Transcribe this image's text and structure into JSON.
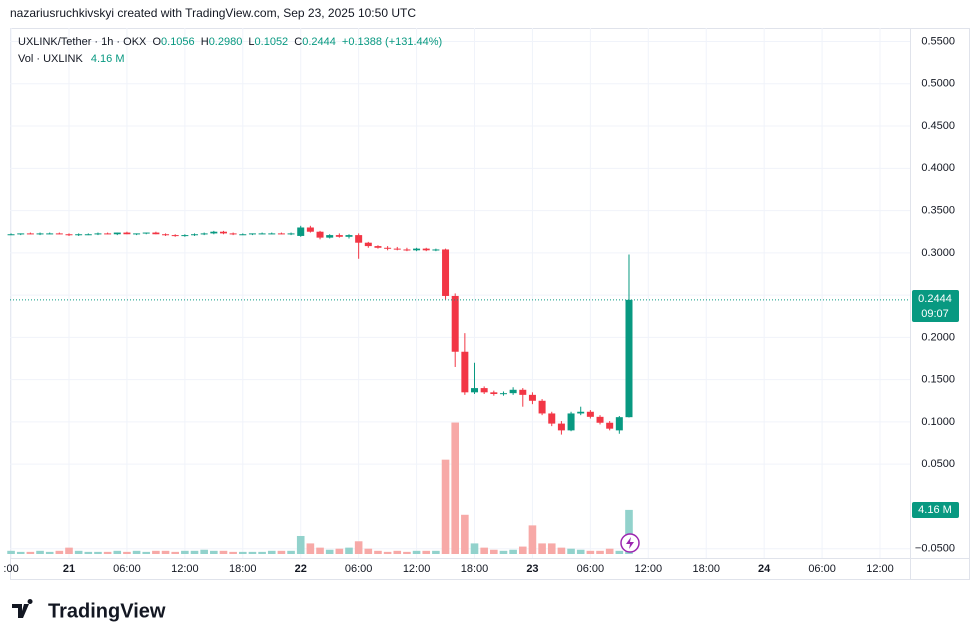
{
  "header": {
    "title": "nazariusruchkivskyi created with TradingView.com, Sep 23, 2025 10:50 UTC"
  },
  "legend": {
    "symbol": "UXLINK/Tether · 1h · OKX",
    "o_label": "O",
    "o": "0.1056",
    "h_label": "H",
    "h": "0.2980",
    "l_label": "L",
    "l": "0.1052",
    "c_label": "C",
    "c": "0.2444",
    "change": "+0.1388 (+131.44%)",
    "vol_label": "Vol · UXLINK",
    "vol": "4.16 M"
  },
  "price_badge": {
    "price": "0.2444",
    "countdown": "09:07"
  },
  "brand": "TradingView",
  "chart_data": {
    "type": "candlestick",
    "categories": [
      ":00",
      null,
      null,
      null,
      null,
      null,
      "21",
      null,
      null,
      null,
      null,
      null,
      "06:00",
      null,
      null,
      null,
      null,
      null,
      "12:00",
      null,
      null,
      null,
      null,
      null,
      "18:00",
      null,
      null,
      null,
      null,
      null,
      "22",
      null,
      null,
      null,
      null,
      null,
      "06:00",
      null,
      null,
      null,
      null,
      null,
      "12:00",
      null,
      null,
      null,
      null,
      null,
      "18:00",
      null,
      null,
      null,
      null,
      null,
      "23",
      null,
      null,
      null,
      null,
      null,
      "06:00",
      null,
      null,
      null,
      null,
      null,
      "12:00",
      null,
      null,
      null,
      null,
      null,
      "18:00",
      null,
      null,
      null,
      null,
      null,
      "24",
      null,
      null,
      null,
      null,
      null,
      "06:00",
      null,
      null,
      null,
      null,
      null,
      "12:00"
    ],
    "open": [
      0.322,
      0.322,
      0.323,
      0.322,
      0.323,
      0.323,
      0.322,
      0.321,
      0.322,
      0.322,
      0.323,
      0.322,
      0.324,
      0.322,
      0.323,
      0.324,
      0.322,
      0.321,
      0.32,
      0.321,
      0.322,
      0.323,
      0.325,
      0.323,
      0.322,
      0.322,
      0.323,
      0.323,
      0.323,
      0.322,
      0.32,
      0.33,
      0.325,
      0.318,
      0.321,
      0.319,
      0.321,
      0.312,
      0.308,
      0.306,
      0.305,
      0.304,
      0.303,
      0.305,
      0.303,
      0.304,
      0.249,
      0.183,
      0.135,
      0.14,
      0.135,
      0.133,
      0.134,
      0.138,
      0.132,
      0.125,
      0.11,
      0.098,
      0.09,
      0.11,
      0.112,
      0.106,
      0.099,
      0.09,
      0.1056,
      null,
      null,
      null,
      null,
      null,
      null,
      null,
      null,
      null,
      null,
      null,
      null,
      null,
      null,
      null,
      null,
      null,
      null,
      null,
      null,
      null,
      null,
      null,
      null,
      null,
      null
    ],
    "high": [
      0.323,
      0.323,
      0.324,
      0.324,
      0.324,
      0.324,
      0.323,
      0.323,
      0.323,
      0.324,
      0.324,
      0.324,
      0.325,
      0.323,
      0.324,
      0.325,
      0.323,
      0.322,
      0.322,
      0.323,
      0.324,
      0.326,
      0.326,
      0.324,
      0.323,
      0.323,
      0.324,
      0.324,
      0.324,
      0.324,
      0.332,
      0.332,
      0.326,
      0.322,
      0.323,
      0.322,
      0.323,
      0.313,
      0.309,
      0.308,
      0.307,
      0.306,
      0.306,
      0.306,
      0.305,
      0.305,
      0.252,
      0.205,
      0.17,
      0.142,
      0.137,
      0.136,
      0.141,
      0.14,
      0.135,
      0.127,
      0.112,
      0.101,
      0.112,
      0.118,
      0.114,
      0.108,
      0.101,
      0.107,
      0.298,
      null,
      null,
      null,
      null,
      null,
      null,
      null,
      null,
      null,
      null,
      null,
      null,
      null,
      null,
      null,
      null,
      null,
      null,
      null,
      null,
      null,
      null,
      null,
      null,
      null,
      null
    ],
    "low": [
      0.321,
      0.321,
      0.322,
      0.321,
      0.322,
      0.322,
      0.32,
      0.32,
      0.321,
      0.321,
      0.322,
      0.321,
      0.322,
      0.321,
      0.322,
      0.322,
      0.32,
      0.319,
      0.319,
      0.32,
      0.321,
      0.322,
      0.322,
      0.321,
      0.321,
      0.321,
      0.322,
      0.322,
      0.322,
      0.321,
      0.319,
      0.324,
      0.316,
      0.317,
      0.318,
      0.317,
      0.293,
      0.306,
      0.305,
      0.303,
      0.303,
      0.302,
      0.302,
      0.302,
      0.302,
      0.245,
      0.165,
      0.132,
      0.133,
      0.133,
      0.131,
      0.131,
      0.132,
      0.118,
      0.121,
      0.108,
      0.095,
      0.085,
      0.089,
      0.108,
      0.104,
      0.097,
      0.09,
      0.086,
      0.1052,
      null,
      null,
      null,
      null,
      null,
      null,
      null,
      null,
      null,
      null,
      null,
      null,
      null,
      null,
      null,
      null,
      null,
      null,
      null,
      null,
      null,
      null,
      null,
      null,
      null,
      null
    ],
    "close": [
      0.322,
      0.323,
      0.322,
      0.323,
      0.323,
      0.322,
      0.321,
      0.322,
      0.322,
      0.323,
      0.322,
      0.324,
      0.322,
      0.323,
      0.324,
      0.322,
      0.321,
      0.32,
      0.321,
      0.322,
      0.323,
      0.325,
      0.323,
      0.322,
      0.322,
      0.323,
      0.323,
      0.323,
      0.322,
      0.323,
      0.33,
      0.325,
      0.318,
      0.321,
      0.319,
      0.321,
      0.312,
      0.308,
      0.306,
      0.305,
      0.304,
      0.303,
      0.305,
      0.303,
      0.304,
      0.249,
      0.183,
      0.135,
      0.14,
      0.135,
      0.133,
      0.134,
      0.138,
      0.132,
      0.125,
      0.11,
      0.098,
      0.09,
      0.11,
      0.112,
      0.106,
      0.099,
      0.092,
      0.1056,
      0.2444,
      null,
      null,
      null,
      null,
      null,
      null,
      null,
      null,
      null,
      null,
      null,
      null,
      null,
      null,
      null,
      null,
      null,
      null,
      null,
      null,
      null,
      null,
      null,
      null,
      null,
      null
    ],
    "volume": [
      0.3,
      0.2,
      0.2,
      0.3,
      0.2,
      0.3,
      0.6,
      0.3,
      0.2,
      0.2,
      0.2,
      0.3,
      0.2,
      0.3,
      0.2,
      0.3,
      0.3,
      0.2,
      0.3,
      0.3,
      0.4,
      0.3,
      0.3,
      0.2,
      0.2,
      0.2,
      0.2,
      0.3,
      0.3,
      0.3,
      1.7,
      1.0,
      0.6,
      0.4,
      0.5,
      0.6,
      1.2,
      0.5,
      0.3,
      0.2,
      0.3,
      0.2,
      0.3,
      0.3,
      0.3,
      8.9,
      12.4,
      3.7,
      1.0,
      0.6,
      0.4,
      0.3,
      0.4,
      0.7,
      2.7,
      1.0,
      1.0,
      0.6,
      0.5,
      0.4,
      0.3,
      0.3,
      0.5,
      0.3,
      4.16,
      null,
      null,
      null,
      null,
      null,
      null,
      null,
      null,
      null,
      null,
      null,
      null,
      null,
      null,
      null,
      null,
      null,
      null,
      null,
      null,
      null,
      null,
      null,
      null,
      null,
      null
    ],
    "up_color": "#089981",
    "down_color": "#f23645",
    "up_volume_color": "#92d2cc",
    "down_volume_color": "#f7a9a7",
    "ylim": [
      -0.061,
      0.566
    ],
    "yticks": [
      {
        "value": -0.05,
        "label": "−0.0500"
      },
      {
        "value": 0.05,
        "label": "0.0500"
      },
      {
        "value": 0.1,
        "label": "0.1000"
      },
      {
        "value": 0.15,
        "label": "0.1500"
      },
      {
        "value": 0.2,
        "label": "0.2000"
      },
      {
        "value": 0.25,
        "label": "0.2500"
      },
      {
        "value": 0.3,
        "label": "0.3000"
      },
      {
        "value": 0.35,
        "label": "0.3500"
      },
      {
        "value": 0.4,
        "label": "0.4000"
      },
      {
        "value": 0.45,
        "label": "0.4500"
      },
      {
        "value": 0.5,
        "label": "0.5000"
      },
      {
        "value": 0.55,
        "label": "0.5500"
      }
    ],
    "grid": true
  }
}
